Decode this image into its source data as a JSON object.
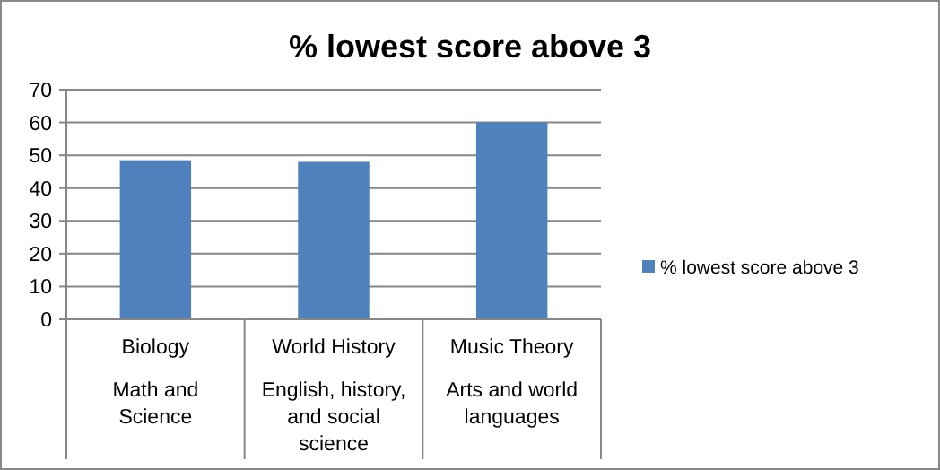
{
  "chart_data": {
    "type": "bar",
    "title": "% lowest score above 3",
    "categories": [
      "Biology",
      "World History",
      "Music Theory"
    ],
    "series": [
      {
        "name": "% lowest score above 3",
        "color": "#4f81bd",
        "values": [
          48.5,
          48,
          60
        ]
      }
    ],
    "ylim": [
      0,
      70
    ],
    "yticks": [
      0,
      10,
      20,
      30,
      40,
      50,
      60,
      70
    ],
    "grid": "y",
    "legend": "right",
    "annotations": [
      "Math and Science",
      "English, history, and social science",
      "Arts and world languages"
    ]
  }
}
